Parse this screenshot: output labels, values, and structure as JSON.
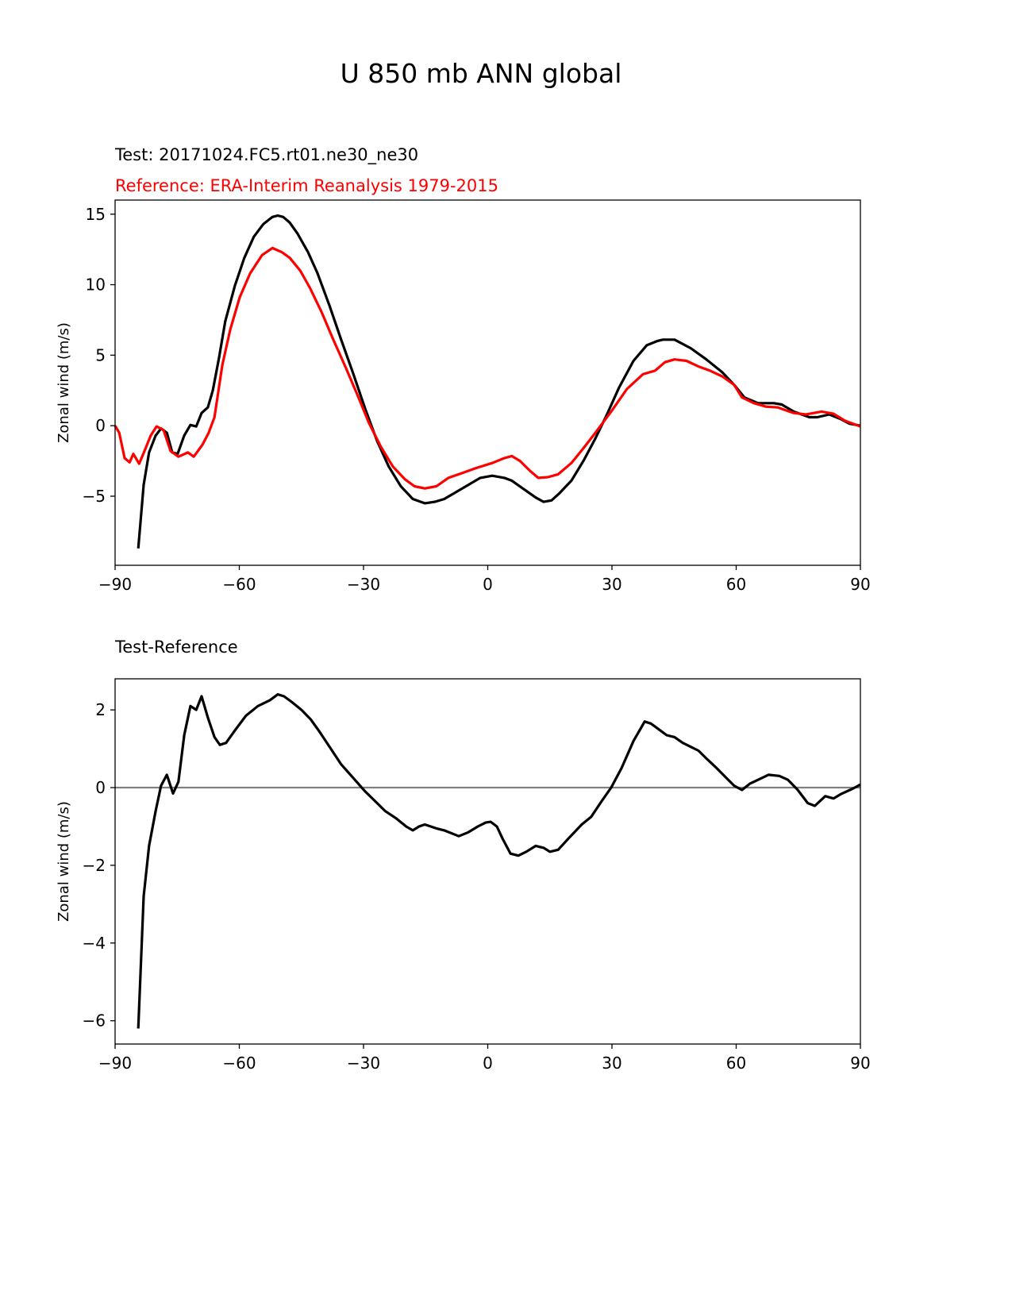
{
  "title": "U 850 mb ANN global",
  "colors": {
    "test": "#000000",
    "reference": "#ff0000",
    "zero_line": "#808080"
  },
  "chart_data": [
    {
      "type": "line",
      "test_label": "Test: 20171024.FC5.rt01.ne30_ne30",
      "reference_label": "Reference: ERA-Interim Reanalysis 1979-2015",
      "xlabel": "",
      "ylabel": "Zonal wind (m/s)",
      "xlim": [
        -90,
        90
      ],
      "ylim": [
        -9.9,
        16
      ],
      "xticks": [
        -90,
        -60,
        -30,
        0,
        30,
        60,
        90
      ],
      "xtick_labels": [
        "−90",
        "−60",
        "−30",
        "0",
        "30",
        "60",
        "90"
      ],
      "yticks": [
        -5,
        0,
        5,
        10,
        15
      ],
      "ytick_labels": [
        "−5",
        "0",
        "5",
        "10",
        "15"
      ],
      "grid": false,
      "series": [
        {
          "name": "Test",
          "color": "#000000",
          "x": [
            -84.4,
            -83.1,
            -81.8,
            -80.2,
            -78.9,
            -77.5,
            -76.2,
            -74.9,
            -73.3,
            -71.8,
            -70.4,
            -69.1,
            -67.6,
            -66.4,
            -64.9,
            -63.4,
            -61.1,
            -58.8,
            -56.5,
            -54.2,
            -52.0,
            -50.7,
            -49.4,
            -47.8,
            -45.9,
            -43.4,
            -41.1,
            -38.2,
            -35.4,
            -32.5,
            -29.6,
            -26.7,
            -23.9,
            -21.0,
            -18.1,
            -15.2,
            -12.8,
            -10.5,
            -7.6,
            -4.7,
            -1.8,
            1.1,
            4.0,
            5.8,
            8.7,
            11.6,
            13.5,
            15.4,
            17.3,
            20.2,
            23.1,
            26.0,
            28.8,
            31.7,
            35.2,
            38.4,
            40.9,
            42.3,
            45.1,
            49.0,
            52.8,
            56.6,
            59.5,
            62.0,
            65.3,
            69.1,
            71.0,
            73.9,
            77.7,
            79.6,
            82.5,
            85.4,
            87.3,
            90
          ],
          "y": [
            -8.7,
            -4.2,
            -1.9,
            -0.7,
            -0.2,
            -0.5,
            -1.9,
            -2.0,
            -0.7,
            0.05,
            -0.05,
            0.9,
            1.3,
            2.5,
            4.8,
            7.4,
            9.9,
            11.9,
            13.4,
            14.3,
            14.8,
            14.9,
            14.8,
            14.4,
            13.6,
            12.3,
            10.8,
            8.5,
            6.1,
            3.7,
            1.2,
            -1.1,
            -2.9,
            -4.3,
            -5.2,
            -5.5,
            -5.4,
            -5.2,
            -4.7,
            -4.2,
            -3.7,
            -3.55,
            -3.7,
            -3.9,
            -4.5,
            -5.1,
            -5.4,
            -5.3,
            -4.8,
            -3.9,
            -2.5,
            -0.9,
            0.8,
            2.7,
            4.6,
            5.7,
            6.0,
            6.1,
            6.1,
            5.5,
            4.7,
            3.8,
            2.9,
            2.0,
            1.6,
            1.6,
            1.5,
            1.0,
            0.6,
            0.6,
            0.8,
            0.45,
            0.15,
            0.0
          ]
        },
        {
          "name": "Reference",
          "color": "#ff0000",
          "x": [
            -90,
            -89,
            -87.7,
            -86.5,
            -85.6,
            -84.2,
            -82.9,
            -81.4,
            -80.0,
            -78.3,
            -76.6,
            -74.7,
            -72.4,
            -71.0,
            -68.9,
            -67.4,
            -66.0,
            -64.1,
            -62.2,
            -59.9,
            -57.4,
            -54.5,
            -52.0,
            -49.7,
            -47.8,
            -45.3,
            -43.0,
            -40.2,
            -37.3,
            -34.4,
            -31.5,
            -28.7,
            -25.8,
            -22.9,
            -20.0,
            -17.7,
            -15.2,
            -12.4,
            -9.5,
            -6.6,
            -2.8,
            1.1,
            4.0,
            5.8,
            7.8,
            10.2,
            12.2,
            14.5,
            17.0,
            20.2,
            23.1,
            26.0,
            29.8,
            33.6,
            37.5,
            40.4,
            42.8,
            45.1,
            48.0,
            50.9,
            53.7,
            56.6,
            59.5,
            61.4,
            64.3,
            67.2,
            70.0,
            73.9,
            76.8,
            80.6,
            83.5,
            86.3,
            90
          ],
          "y": [
            0,
            -0.5,
            -2.3,
            -2.6,
            -2.0,
            -2.7,
            -1.8,
            -0.7,
            -0.05,
            -0.3,
            -1.8,
            -2.2,
            -1.9,
            -2.2,
            -1.35,
            -0.5,
            0.6,
            4.3,
            6.8,
            9.1,
            10.8,
            12.1,
            12.6,
            12.3,
            11.9,
            11.0,
            9.8,
            8.1,
            6.1,
            4.2,
            2.2,
            0.2,
            -1.5,
            -2.9,
            -3.8,
            -4.3,
            -4.45,
            -4.3,
            -3.7,
            -3.4,
            -3.0,
            -2.65,
            -2.3,
            -2.15,
            -2.5,
            -3.2,
            -3.7,
            -3.65,
            -3.45,
            -2.65,
            -1.6,
            -0.5,
            1.0,
            2.6,
            3.65,
            3.9,
            4.5,
            4.7,
            4.6,
            4.2,
            3.9,
            3.5,
            2.9,
            2.0,
            1.6,
            1.35,
            1.3,
            0.9,
            0.8,
            1.0,
            0.85,
            0.35,
            -0.05
          ]
        }
      ]
    },
    {
      "type": "line",
      "title": "Test-Reference",
      "xlabel": "",
      "ylabel": "Zonal wind (m/s)",
      "xlim": [
        -90,
        90
      ],
      "ylim": [
        -6.6,
        2.8
      ],
      "xticks": [
        -90,
        -60,
        -30,
        0,
        30,
        60,
        90
      ],
      "xtick_labels": [
        "−90",
        "−60",
        "−30",
        "0",
        "30",
        "60",
        "90"
      ],
      "yticks": [
        -6,
        -4,
        -2,
        0,
        2
      ],
      "ytick_labels": [
        "−6",
        "−4",
        "−2",
        "0",
        "2"
      ],
      "grid": false,
      "zero_line": 0,
      "series": [
        {
          "name": "Test-Reference",
          "color": "#000000",
          "x": [
            -84.4,
            -83.1,
            -81.8,
            -80.2,
            -78.9,
            -77.5,
            -76.0,
            -74.7,
            -73.3,
            -71.8,
            -70.4,
            -69.1,
            -67.6,
            -66.0,
            -64.7,
            -63.2,
            -61.2,
            -58.4,
            -55.5,
            -52.6,
            -50.7,
            -49.2,
            -47.3,
            -45.0,
            -42.7,
            -40.7,
            -38.2,
            -35.4,
            -32.5,
            -29.6,
            -26.7,
            -24.8,
            -22.0,
            -19.7,
            -18.1,
            -16.6,
            -15.2,
            -12.4,
            -10.5,
            -7.0,
            -4.7,
            -2.4,
            -0.5,
            0.7,
            2.2,
            3.5,
            5.5,
            7.4,
            9.3,
            11.6,
            13.5,
            15.0,
            17.0,
            19.6,
            22.7,
            25.0,
            27.5,
            29.8,
            32.3,
            35.2,
            37.9,
            39.4,
            41.3,
            43.2,
            45.1,
            47.1,
            49.0,
            50.9,
            52.8,
            55.3,
            57.6,
            59.5,
            61.4,
            63.3,
            65.3,
            67.8,
            70.4,
            72.5,
            74.8,
            77.3,
            79.0,
            81.5,
            83.5,
            85.4,
            88.3,
            90
          ],
          "y": [
            -6.2,
            -2.8,
            -1.5,
            -0.6,
            0.05,
            0.33,
            -0.15,
            0.15,
            1.35,
            2.1,
            2.0,
            2.35,
            1.8,
            1.3,
            1.1,
            1.15,
            1.45,
            1.85,
            2.1,
            2.25,
            2.4,
            2.35,
            2.2,
            2.0,
            1.75,
            1.45,
            1.05,
            0.6,
            0.25,
            -0.1,
            -0.4,
            -0.6,
            -0.8,
            -1.0,
            -1.1,
            -1.0,
            -0.95,
            -1.05,
            -1.1,
            -1.25,
            -1.15,
            -1.0,
            -0.9,
            -0.88,
            -1.0,
            -1.3,
            -1.7,
            -1.75,
            -1.65,
            -1.5,
            -1.55,
            -1.65,
            -1.6,
            -1.3,
            -0.95,
            -0.75,
            -0.35,
            0.0,
            0.5,
            1.2,
            1.7,
            1.65,
            1.5,
            1.35,
            1.3,
            1.15,
            1.05,
            0.95,
            0.75,
            0.5,
            0.25,
            0.05,
            -0.06,
            0.1,
            0.2,
            0.33,
            0.3,
            0.2,
            -0.05,
            -0.4,
            -0.47,
            -0.22,
            -0.28,
            -0.16,
            -0.02,
            0.08
          ]
        }
      ]
    }
  ]
}
